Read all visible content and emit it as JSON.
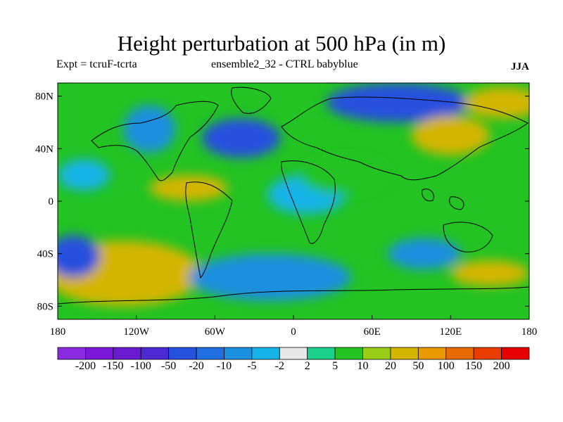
{
  "figure": {
    "title": "Height perturbation at 500 hPa (in m)",
    "left_subtitle": "Expt = tcruF-tcrta",
    "center_subtitle": "ensemble2_32 - CTRL babyblue",
    "right_subtitle": "JJA"
  },
  "map": {
    "lon_ticks": [
      "180",
      "120W",
      "60W",
      "0",
      "60E",
      "120E",
      "180"
    ],
    "lat_ticks": [
      "80N",
      "40N",
      "0",
      "40S",
      "80S"
    ]
  },
  "colorbar": {
    "colors": [
      "#8a2be2",
      "#7b18d9",
      "#6a1bd0",
      "#4b2ad4",
      "#2650de",
      "#1f6fe0",
      "#1b8fe0",
      "#15b3e8",
      "#e8e8e8",
      "#19d18a",
      "#22c322",
      "#9acd18",
      "#d4b500",
      "#e89a00",
      "#e86a00",
      "#e83c00",
      "#e60000"
    ],
    "labels": [
      "-200",
      "-150",
      "-100",
      "-50",
      "-20",
      "-10",
      "-5",
      "-2",
      "2",
      "5",
      "10",
      "20",
      "50",
      "100",
      "150",
      "200"
    ]
  },
  "anomalies": [
    {
      "lon": -150,
      "lat": -58,
      "rx": 38,
      "ry": 16,
      "color": "#e89a00"
    },
    {
      "lon": -130,
      "lat": -55,
      "rx": 60,
      "ry": 25,
      "color": "#d4b500"
    },
    {
      "lon": -168,
      "lat": -42,
      "rx": 20,
      "ry": 16,
      "color": "#2650de"
    },
    {
      "lon": -20,
      "lat": -60,
      "rx": 45,
      "ry": 12,
      "color": "#2650de"
    },
    {
      "lon": -18,
      "lat": -58,
      "rx": 62,
      "ry": 18,
      "color": "#1b8fe0"
    },
    {
      "lon": 100,
      "lat": -40,
      "rx": 28,
      "ry": 12,
      "color": "#1b8fe0"
    },
    {
      "lon": 150,
      "lat": -55,
      "rx": 30,
      "ry": 10,
      "color": "#d4b500"
    },
    {
      "lon": 80,
      "lat": 75,
      "rx": 55,
      "ry": 15,
      "color": "#2650de"
    },
    {
      "lon": -110,
      "lat": 55,
      "rx": 20,
      "ry": 18,
      "color": "#1b8fe0"
    },
    {
      "lon": -40,
      "lat": 48,
      "rx": 30,
      "ry": 15,
      "color": "#2650de"
    },
    {
      "lon": -160,
      "lat": 20,
      "rx": 20,
      "ry": 12,
      "color": "#15b3e8"
    },
    {
      "lon": 120,
      "lat": 50,
      "rx": 30,
      "ry": 15,
      "color": "#d4b500"
    },
    {
      "lon": 10,
      "lat": 5,
      "rx": 30,
      "ry": 15,
      "color": "#15b3e8"
    },
    {
      "lon": -80,
      "lat": 10,
      "rx": 30,
      "ry": 10,
      "color": "#d4b500"
    },
    {
      "lon": 40,
      "lat": 20,
      "rx": 35,
      "ry": 15,
      "color": "#22c322"
    },
    {
      "lon": 160,
      "lat": 75,
      "rx": 30,
      "ry": 12,
      "color": "#d4b500"
    }
  ]
}
